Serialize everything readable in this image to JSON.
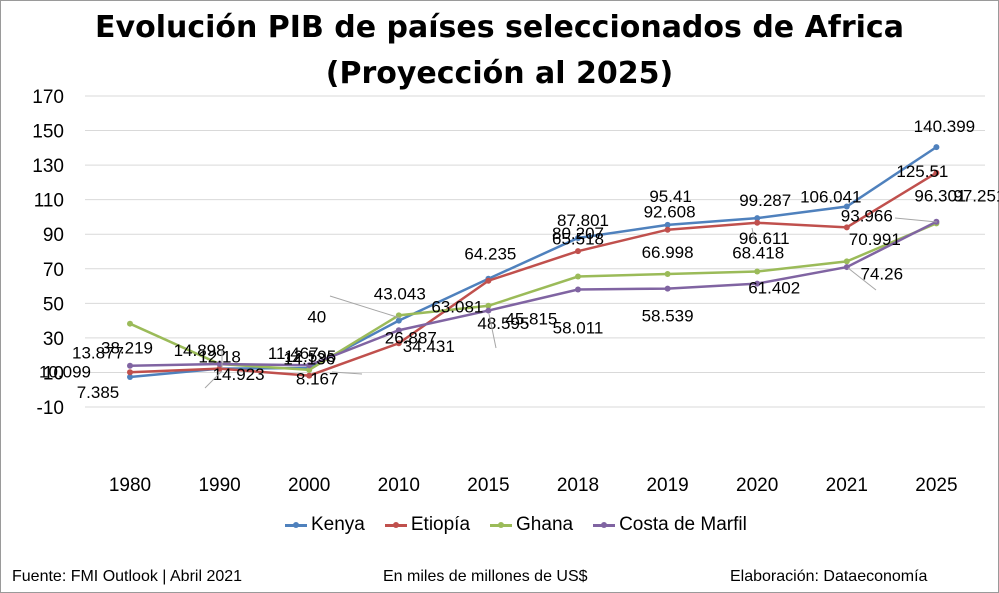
{
  "chart_data": {
    "type": "line",
    "title": "Evolución PIB de países seleccionados de Africa",
    "subtitle": "(Proyección al 2025)",
    "categories": [
      "1980",
      "1990",
      "2000",
      "2010",
      "2015",
      "2018",
      "2019",
      "2020",
      "2021",
      "2025"
    ],
    "ylim": [
      -10,
      170
    ],
    "yticks": [
      -10,
      10,
      30,
      50,
      70,
      90,
      110,
      130,
      150,
      170
    ],
    "grid": true,
    "legend_position": "bottom",
    "series": [
      {
        "name": "Kenya",
        "color": "#4f81bd",
        "values": [
          7.385,
          12.18,
          12.595,
          40,
          64.235,
          87.801,
          95.41,
          99.287,
          106.041,
          140.399
        ],
        "labels": [
          "7.385",
          "12.18",
          "12.595",
          "40",
          "64.235",
          "87.801",
          "95.41",
          "99.287",
          "106.041",
          "140.399"
        ]
      },
      {
        "name": "Etiopía",
        "color": "#c0504d",
        "values": [
          10.099,
          12.18,
          8.167,
          26.887,
          63.081,
          80.207,
          92.608,
          96.611,
          93.966,
          125.51
        ],
        "labels": [
          "10.099",
          "",
          "8.167",
          "26.887",
          "63.081",
          "80.207",
          "92.608",
          "96.611",
          "93.966",
          "125.51"
        ]
      },
      {
        "name": "Ghana",
        "color": "#9bbb59",
        "values": [
          38.219,
          14.898,
          11.467,
          43.043,
          48.595,
          65.518,
          66.998,
          68.418,
          74.26,
          96.301
        ],
        "labels": [
          "38.219",
          "14.898",
          "11.467",
          "43.043",
          "48.595",
          "65.518",
          "66.998",
          "68.418",
          "74.26",
          "96.301"
        ]
      },
      {
        "name": "Costa de Marfil",
        "color": "#8064a2",
        "values": [
          13.877,
          14.923,
          14.136,
          34.431,
          45.815,
          58.011,
          58.539,
          61.402,
          70.991,
          97.251
        ],
        "labels": [
          "13.877",
          "14.923",
          "14.136",
          "34.431",
          "45.815",
          "58.011",
          "58.539",
          "61.402",
          "70.991",
          "97.251"
        ]
      }
    ]
  },
  "footer": {
    "source": "Fuente: FMI Outlook | Abril 2021",
    "units": "En miles de millones de US$",
    "credit": "Elaboración: Dataeconomía"
  }
}
